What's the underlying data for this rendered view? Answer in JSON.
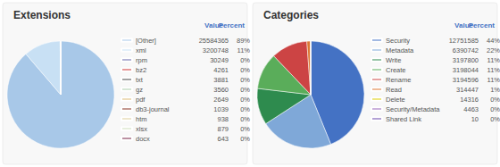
{
  "chart_data": [
    {
      "type": "pie",
      "title": "Extensions",
      "categories": [
        "[Other]",
        "xml",
        "rpm",
        "bz2",
        "txt",
        "gz",
        "pdf",
        "db3-journal",
        "htm",
        "xlsx",
        "docx"
      ],
      "values": [
        25584365,
        3200748,
        30249,
        4261,
        3881,
        3560,
        2649,
        1039,
        938,
        879,
        643
      ],
      "percents": [
        89,
        11,
        0,
        0,
        0,
        0,
        0,
        0,
        0,
        0,
        0
      ],
      "percent_labels": [
        "89%",
        "11%",
        "0%",
        "0%",
        "0%",
        "0%",
        "0%",
        "0%",
        "0%",
        "0%",
        "0%"
      ],
      "value_header": "Value",
      "percent_header": "Percent",
      "colors": [
        "#a8c8e8",
        "#c8e0f4",
        "#6666aa",
        "#cc3333",
        "#444444",
        "#aaccaa",
        "#ddbb77",
        "#883322",
        "#ddcc99",
        "#ccddbb",
        "#772244"
      ]
    },
    {
      "type": "pie",
      "title": "Categories",
      "categories": [
        "Security",
        "Metadata",
        "Write",
        "Create",
        "Rename",
        "Read",
        "Delete",
        "Security/Metadata",
        "Shared Link"
      ],
      "values": [
        12751585,
        6390742,
        3197800,
        3198044,
        3194596,
        314447,
        14316,
        4463,
        10
      ],
      "percents": [
        44,
        22,
        11,
        11,
        11,
        1,
        0,
        0,
        0
      ],
      "percent_labels": [
        "44%",
        "22%",
        "11%",
        "11%",
        "11%",
        "1%",
        "0%",
        "0%",
        "0%"
      ],
      "value_header": "Value",
      "percent_header": "Percent",
      "colors": [
        "#4472c4",
        "#7fa8d8",
        "#2e8b4e",
        "#5aad5a",
        "#cc4444",
        "#dd7733",
        "#ddcc00",
        "#9966bb",
        "#6644aa"
      ]
    }
  ]
}
